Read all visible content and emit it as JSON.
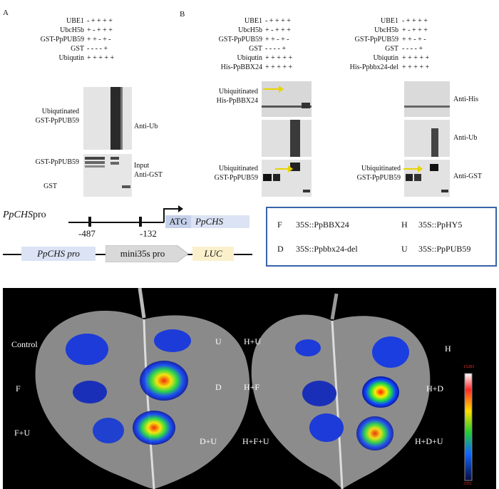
{
  "panelA": {
    "letter": "A",
    "rows": [
      {
        "label": "UBE1",
        "signs": "- + + + +"
      },
      {
        "label": "UbcH5b",
        "signs": "+ - + + +"
      },
      {
        "label": "GST-PpPUB59",
        "signs": "+ + - + -"
      },
      {
        "label": "GST",
        "signs": "- - - - +"
      },
      {
        "label": "Ubiqutin",
        "signs": "+ + + + +"
      }
    ],
    "blot1_left": "Ubiqutinated\nGST-PpPUB59",
    "blot1_right": "Anti-Ub",
    "blot2_left1": "GST-PpPUB59",
    "blot2_left2": "GST",
    "blot2_right": "Input\nAnti-GST"
  },
  "panelB": {
    "letter": "B",
    "left": {
      "rows": [
        {
          "label": "UBE1",
          "signs": "- + + + +"
        },
        {
          "label": "UbcH5b",
          "signs": "+ - + + +"
        },
        {
          "label": "GST-PpPUB59",
          "signs": "+ + - + -"
        },
        {
          "label": "GST",
          "signs": "- - - - +"
        },
        {
          "label": "Ubiqutin",
          "signs": "+ + + + +"
        },
        {
          "label": "His-PpBBX24",
          "signs": "+ + + + +"
        }
      ],
      "blot1_label": "Ubiquitinated\nHis-PpBBX24",
      "blot3_label": "Ubiquitinated\nGST-PpPUB59"
    },
    "right": {
      "rows": [
        {
          "label": "UBE1",
          "signs": "- + + + +"
        },
        {
          "label": "UbcH5b",
          "signs": "+ - + + +"
        },
        {
          "label": "GST-PpPUB59",
          "signs": "+ + - + -"
        },
        {
          "label": "GST",
          "signs": "- - - - +"
        },
        {
          "label": "Ubiqutin",
          "signs": "+ + + + +"
        },
        {
          "label": "His-Ppbbx24-del",
          "signs": "+ + + + +"
        }
      ],
      "blot3_label": "Ubiquitinated\nGST-PpPUB59",
      "antibodies": [
        "Anti-His",
        "Anti-Ub",
        "Anti-GST"
      ]
    }
  },
  "promoter": {
    "name_italic": "PpCHS",
    "name_suffix": "pro",
    "pos1": "-487",
    "pos2": "-132",
    "atg": "ATG",
    "gene": "PpCHS",
    "construct_promoter": "PpCHS pro",
    "construct_mini": "mini35s pro",
    "construct_luc": "LUC"
  },
  "legend": {
    "F": "35S::PpBBX24",
    "H": "35S::PpHY5",
    "D": "35S::Ppbbx24-del",
    "U": "35S::PpPUB59"
  },
  "leaf_left_labels": [
    "Control",
    "U",
    "F",
    "D",
    "F+U",
    "D+U"
  ],
  "leaf_right_labels": [
    "H+U",
    "H",
    "H+F",
    "H+D",
    "H+F+U",
    "H+D+U"
  ],
  "colorbar": {
    "max": "15283",
    "min": "3351"
  },
  "colors": {
    "legend_border": "#3a63a8",
    "arrow": "#e8d400",
    "promoter_box": "#dbe3f4",
    "luc_box": "#fbf0cc"
  }
}
